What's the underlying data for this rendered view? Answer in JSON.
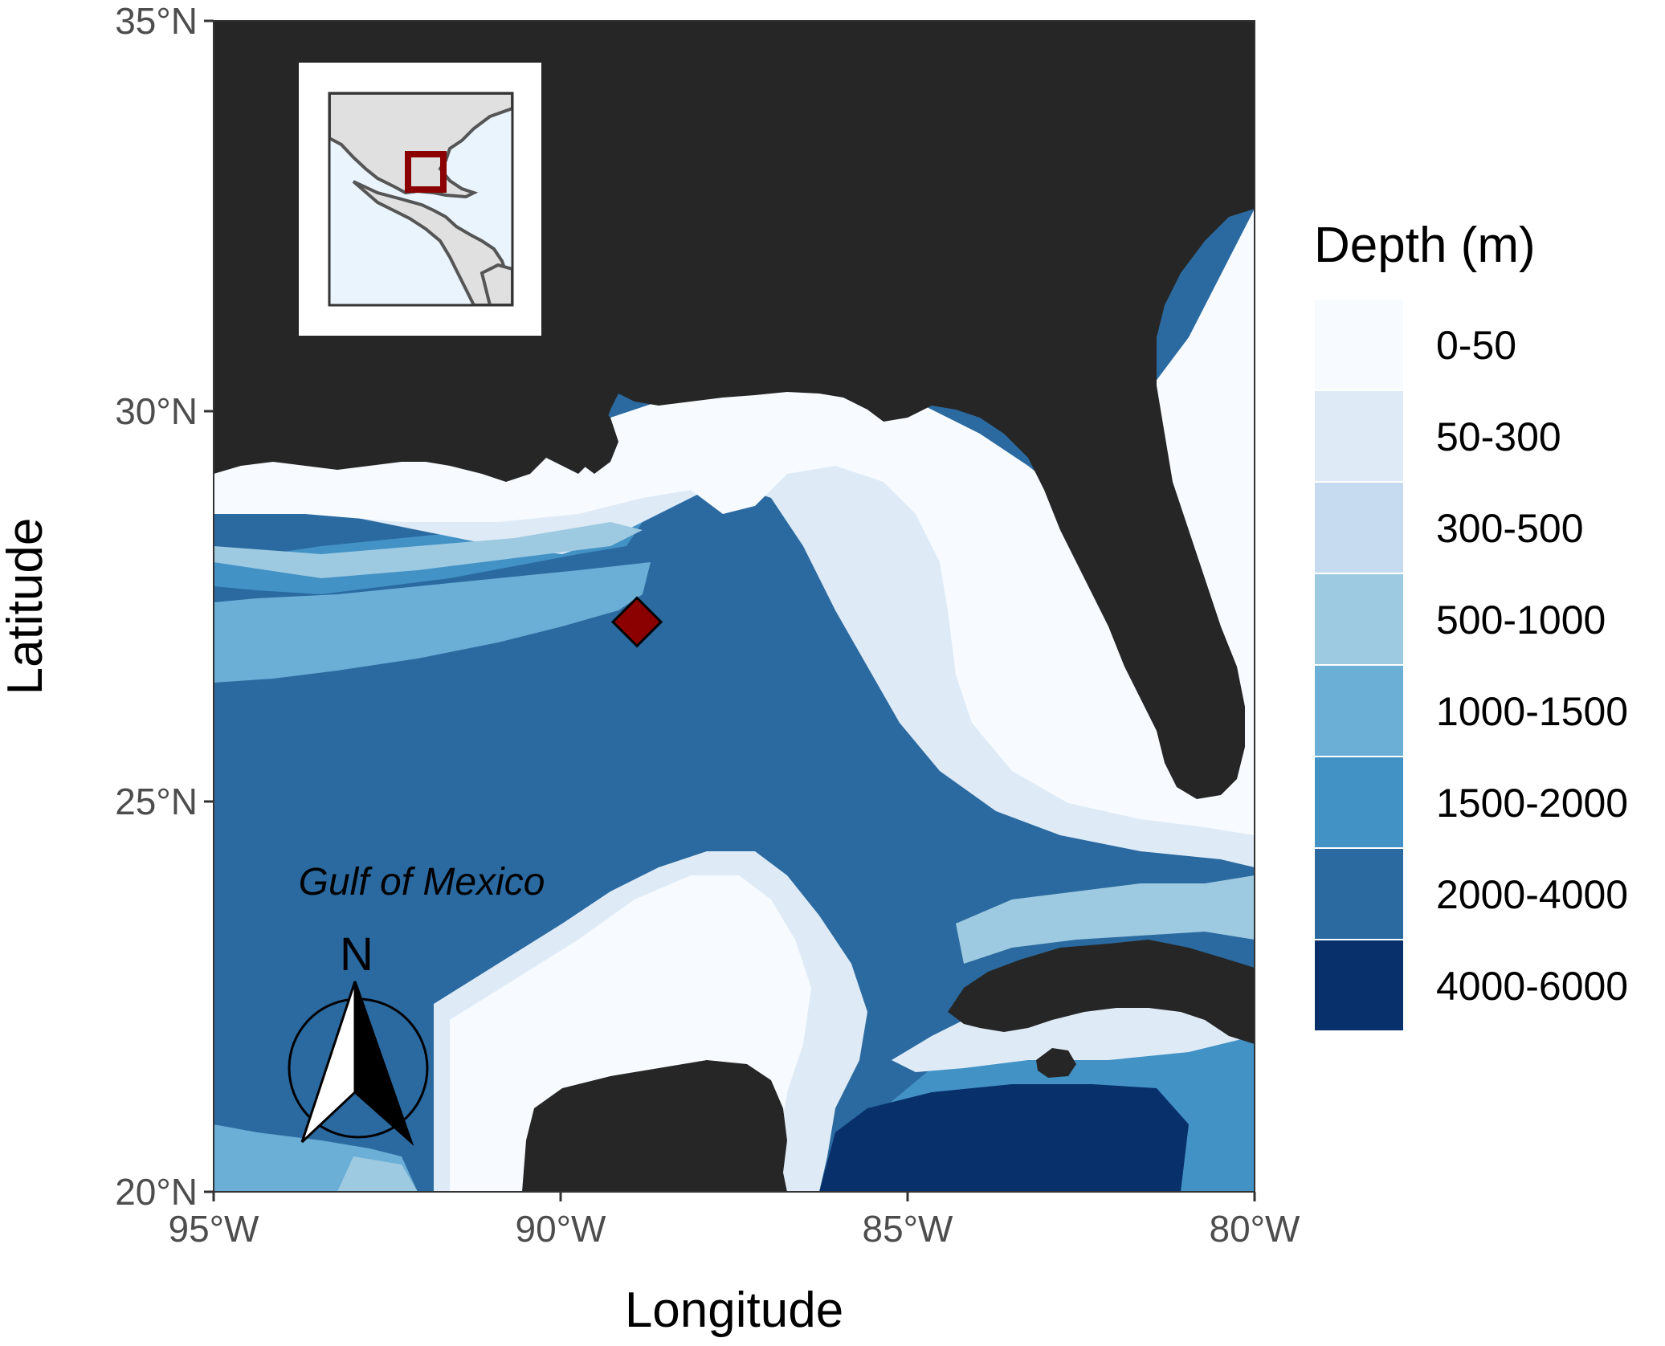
{
  "map": {
    "region_label": "Gulf of Mexico",
    "north_arrow": {
      "label": "N",
      "icon": "north-arrow-icon"
    },
    "site_marker": {
      "lon": -88.9,
      "lat": 27.3,
      "color": "#8b0000",
      "shape": "diamond"
    },
    "colors": {
      "land": "#262626",
      "panel_border": "#333333"
    }
  },
  "axes": {
    "x": {
      "title": "Longitude",
      "range": [
        -95,
        -80
      ],
      "ticks": [
        {
          "value": -95,
          "label": "95°W"
        },
        {
          "value": -90,
          "label": "90°W"
        },
        {
          "value": -85,
          "label": "85°W"
        },
        {
          "value": -80,
          "label": "80°W"
        }
      ]
    },
    "y": {
      "title": "Latitude",
      "range": [
        20,
        35
      ],
      "ticks": [
        {
          "value": 35,
          "label": "35°N"
        },
        {
          "value": 30,
          "label": "30°N"
        },
        {
          "value": 25,
          "label": "25°N"
        },
        {
          "value": 20,
          "label": "20°N"
        }
      ]
    }
  },
  "legend": {
    "title": "Depth (m)",
    "entries": [
      {
        "label": "0-50",
        "color": "#f7fbff"
      },
      {
        "label": "50-300",
        "color": "#deebf7"
      },
      {
        "label": "300-500",
        "color": "#c6dbef"
      },
      {
        "label": "500-1000",
        "color": "#9ecae1"
      },
      {
        "label": "1000-1500",
        "color": "#6baed6"
      },
      {
        "label": "1500-2000",
        "color": "#4292c6"
      },
      {
        "label": "2000-4000",
        "color": "#2b6aa0"
      },
      {
        "label": "4000-6000",
        "color": "#08306b"
      }
    ]
  },
  "inset": {
    "description_icon": "world-locator-icon",
    "highlight_color": "#8b0000",
    "land_color": "#e0e0e0",
    "water_color": "#eaf4fd"
  }
}
